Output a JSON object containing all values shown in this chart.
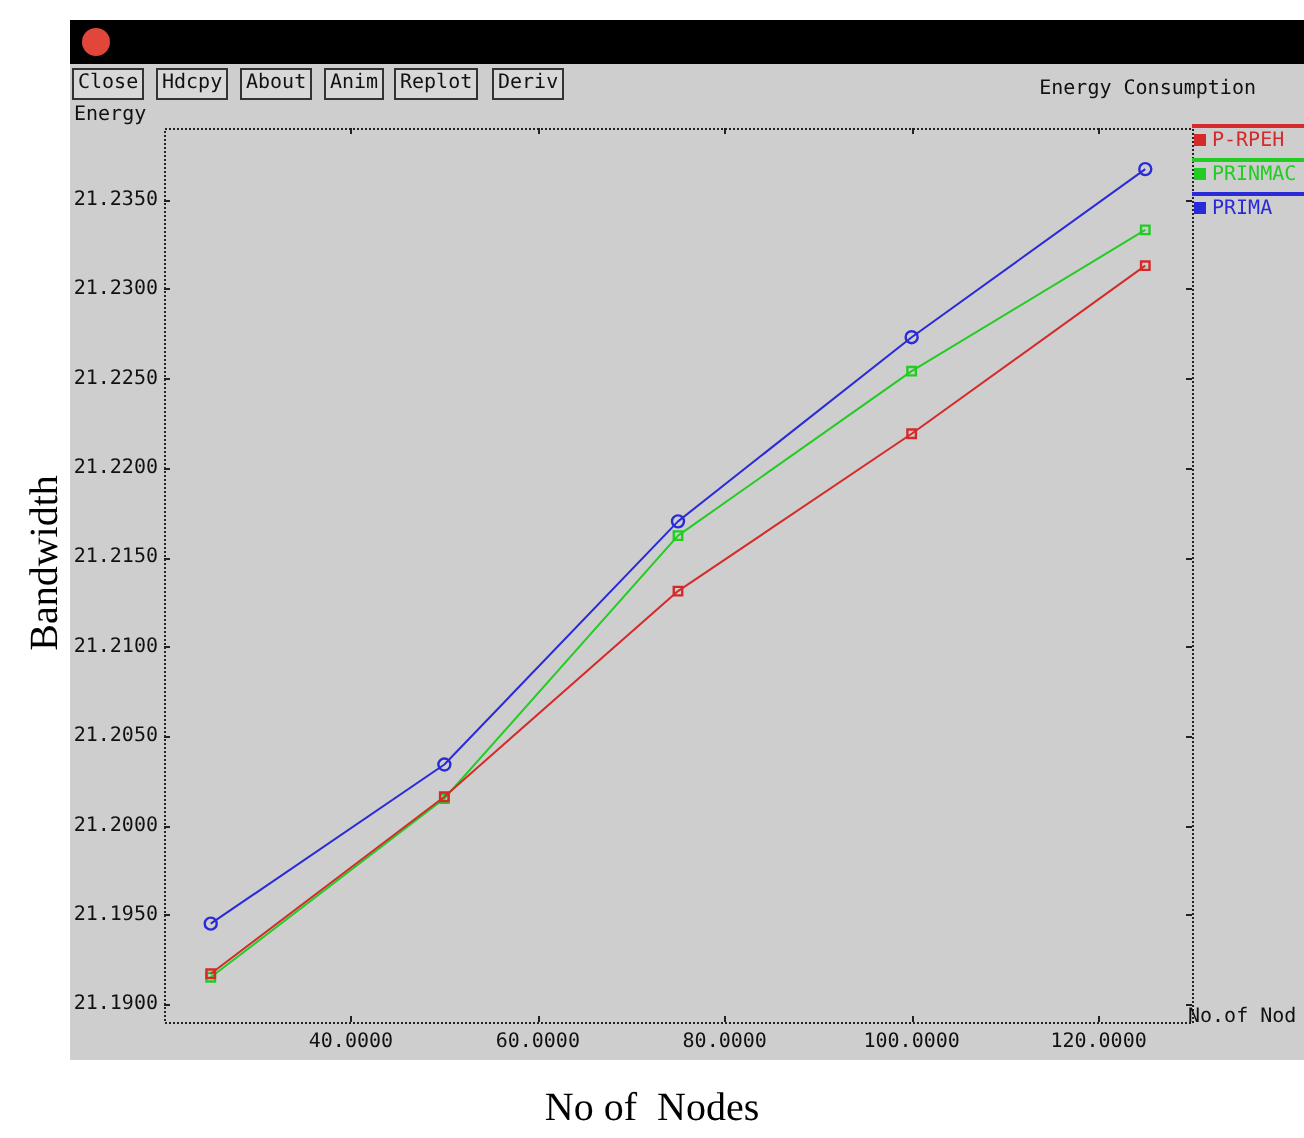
{
  "chart_data": {
    "type": "line",
    "title": "Energy Consumption",
    "xlabel": "No of  Nodes",
    "ylabel": "Bandwidth",
    "annotations": [
      "Energy",
      "No.of Nod",
      "Close",
      "Hdcpy",
      "About",
      "Anim",
      "Replot",
      "Deriv"
    ],
    "x": [
      25,
      50,
      75,
      100,
      125
    ],
    "series": [
      {
        "name": "P-RPEH",
        "color": "#d42a2a",
        "marker": "square",
        "values": [
          21.1917,
          21.2016,
          21.2131,
          21.2219,
          21.2313
        ]
      },
      {
        "name": "PRINMAC",
        "color": "#22cc22",
        "marker": "square",
        "values": [
          21.1915,
          21.2015,
          21.2162,
          21.2254,
          21.2333
        ]
      },
      {
        "name": "PRIMA",
        "color": "#2a2ad8",
        "marker": "circle",
        "values": [
          21.1945,
          21.2034,
          21.217,
          21.2273,
          21.2367
        ]
      }
    ],
    "xlim": [
      20,
      130
    ],
    "ylim": [
      21.189,
      21.239
    ],
    "xticks": [
      {
        "value": 40,
        "label": "40.0000"
      },
      {
        "value": 60,
        "label": "60.0000"
      },
      {
        "value": 80,
        "label": "80.0000"
      },
      {
        "value": 100,
        "label": "100.0000"
      },
      {
        "value": 120,
        "label": "120.0000"
      }
    ],
    "yticks": [
      {
        "value": 21.19,
        "label": "21.1900"
      },
      {
        "value": 21.195,
        "label": "21.1950"
      },
      {
        "value": 21.2,
        "label": "21.2000"
      },
      {
        "value": 21.205,
        "label": "21.2050"
      },
      {
        "value": 21.21,
        "label": "21.2100"
      },
      {
        "value": 21.215,
        "label": "21.2150"
      },
      {
        "value": 21.22,
        "label": "21.2200"
      },
      {
        "value": 21.225,
        "label": "21.2250"
      },
      {
        "value": 21.23,
        "label": "21.2300"
      },
      {
        "value": 21.235,
        "label": "21.2350"
      }
    ],
    "grid": false,
    "legend": "top right",
    "line_style": "solid"
  }
}
